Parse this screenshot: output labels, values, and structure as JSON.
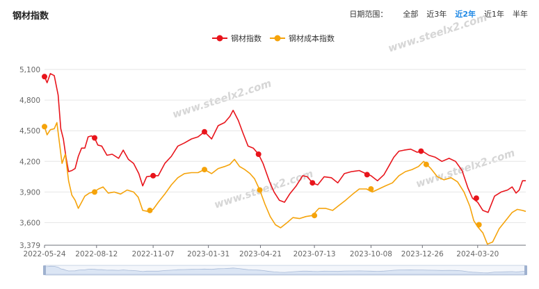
{
  "header": {
    "title": "钢材指数",
    "range_label": "日期范围：",
    "range_options": [
      "全部",
      "近3年",
      "近2年",
      "近1年",
      "半年"
    ],
    "active_range": "近2年"
  },
  "watermark": "www.steelx2.com",
  "colors": {
    "steel_index": "#e8141b",
    "cost_index": "#f5a30a",
    "grid": "#e6e6e6",
    "active": "#1e88e5"
  },
  "chart_data": {
    "type": "line",
    "title": "",
    "xlabel": "",
    "ylabel": "",
    "x_ticks": [
      "2022-05-24",
      "2022-08-12",
      "2022-11-07",
      "2023-01-31",
      "2023-04-21",
      "2023-07-13",
      "2023-10-08",
      "2023-12-26",
      "2024-03-20"
    ],
    "y_ticks": [
      "3,379",
      "3,600",
      "3,900",
      "4,200",
      "4,500",
      "4,800",
      "5,100"
    ],
    "ylim": [
      3379,
      5100
    ],
    "grid": true,
    "legend_position": "top-center",
    "series": [
      {
        "name": "钢材指数",
        "color": "#e8141b",
        "points": [
          [
            "2022-05-24",
            5030
          ],
          [
            "2022-05-28",
            4970
          ],
          [
            "2022-06-02",
            5060
          ],
          [
            "2022-06-08",
            5040
          ],
          [
            "2022-06-14",
            4850
          ],
          [
            "2022-06-18",
            4520
          ],
          [
            "2022-06-22",
            4420
          ],
          [
            "2022-06-26",
            4240
          ],
          [
            "2022-06-30",
            4100
          ],
          [
            "2022-07-05",
            4110
          ],
          [
            "2022-07-10",
            4130
          ],
          [
            "2022-07-15",
            4250
          ],
          [
            "2022-07-20",
            4330
          ],
          [
            "2022-07-25",
            4330
          ],
          [
            "2022-07-30",
            4440
          ],
          [
            "2022-08-04",
            4450
          ],
          [
            "2022-08-09",
            4430
          ],
          [
            "2022-08-14",
            4360
          ],
          [
            "2022-08-20",
            4350
          ],
          [
            "2022-08-28",
            4260
          ],
          [
            "2022-09-05",
            4270
          ],
          [
            "2022-09-15",
            4230
          ],
          [
            "2022-09-22",
            4310
          ],
          [
            "2022-09-30",
            4220
          ],
          [
            "2022-10-08",
            4180
          ],
          [
            "2022-10-16",
            4080
          ],
          [
            "2022-10-22",
            3960
          ],
          [
            "2022-10-28",
            4050
          ],
          [
            "2022-11-07",
            4060
          ],
          [
            "2022-11-15",
            4060
          ],
          [
            "2022-11-25",
            4180
          ],
          [
            "2022-12-05",
            4250
          ],
          [
            "2022-12-15",
            4350
          ],
          [
            "2022-12-25",
            4380
          ],
          [
            "2023-01-05",
            4420
          ],
          [
            "2023-01-15",
            4440
          ],
          [
            "2023-01-25",
            4490
          ],
          [
            "2023-02-05",
            4420
          ],
          [
            "2023-02-15",
            4550
          ],
          [
            "2023-02-25",
            4580
          ],
          [
            "2023-03-05",
            4640
          ],
          [
            "2023-03-10",
            4700
          ],
          [
            "2023-03-18",
            4600
          ],
          [
            "2023-03-25",
            4480
          ],
          [
            "2023-04-02",
            4350
          ],
          [
            "2023-04-10",
            4330
          ],
          [
            "2023-04-18",
            4270
          ],
          [
            "2023-04-25",
            4180
          ],
          [
            "2023-05-05",
            4000
          ],
          [
            "2023-05-12",
            3900
          ],
          [
            "2023-05-20",
            3820
          ],
          [
            "2023-05-28",
            3800
          ],
          [
            "2023-06-05",
            3880
          ],
          [
            "2023-06-15",
            3960
          ],
          [
            "2023-06-25",
            4060
          ],
          [
            "2023-07-02",
            4050
          ],
          [
            "2023-07-10",
            3990
          ],
          [
            "2023-07-18",
            3970
          ],
          [
            "2023-07-28",
            4050
          ],
          [
            "2023-08-08",
            4040
          ],
          [
            "2023-08-18",
            3990
          ],
          [
            "2023-08-28",
            4080
          ],
          [
            "2023-09-08",
            4100
          ],
          [
            "2023-09-20",
            4110
          ],
          [
            "2023-09-30",
            4080
          ],
          [
            "2023-10-08",
            4060
          ],
          [
            "2023-10-18",
            4010
          ],
          [
            "2023-10-28",
            4070
          ],
          [
            "2023-11-05",
            4160
          ],
          [
            "2023-11-12",
            4240
          ],
          [
            "2023-11-20",
            4300
          ],
          [
            "2023-11-28",
            4310
          ],
          [
            "2023-12-08",
            4320
          ],
          [
            "2023-12-18",
            4290
          ],
          [
            "2023-12-26",
            4300
          ],
          [
            "2024-01-05",
            4260
          ],
          [
            "2024-01-15",
            4240
          ],
          [
            "2024-01-25",
            4200
          ],
          [
            "2024-02-05",
            4230
          ],
          [
            "2024-02-15",
            4200
          ],
          [
            "2024-02-25",
            4110
          ],
          [
            "2024-03-05",
            3940
          ],
          [
            "2024-03-12",
            3840
          ],
          [
            "2024-03-20",
            3800
          ],
          [
            "2024-03-28",
            3720
          ],
          [
            "2024-04-05",
            3700
          ],
          [
            "2024-04-15",
            3860
          ],
          [
            "2024-04-25",
            3900
          ],
          [
            "2024-05-05",
            3920
          ],
          [
            "2024-05-12",
            3950
          ],
          [
            "2024-05-18",
            3890
          ],
          [
            "2024-05-23",
            3920
          ],
          [
            "2024-05-28",
            4010
          ],
          [
            "2024-06-02",
            4010
          ]
        ],
        "markers": [
          [
            "2022-05-24",
            5030
          ],
          [
            "2022-08-09",
            4430
          ],
          [
            "2022-11-07",
            4060
          ],
          [
            "2023-01-25",
            4490
          ],
          [
            "2023-04-18",
            4270
          ],
          [
            "2023-07-10",
            3990
          ],
          [
            "2023-10-02",
            4070
          ],
          [
            "2023-12-24",
            4300
          ],
          [
            "2024-03-18",
            3840
          ]
        ]
      },
      {
        "name": "钢材成本指数",
        "color": "#f5a30a",
        "points": [
          [
            "2022-05-24",
            4540
          ],
          [
            "2022-05-28",
            4460
          ],
          [
            "2022-06-02",
            4510
          ],
          [
            "2022-06-08",
            4520
          ],
          [
            "2022-06-12",
            4580
          ],
          [
            "2022-06-16",
            4380
          ],
          [
            "2022-06-20",
            4180
          ],
          [
            "2022-06-25",
            4270
          ],
          [
            "2022-06-30",
            4010
          ],
          [
            "2022-07-05",
            3870
          ],
          [
            "2022-07-10",
            3820
          ],
          [
            "2022-07-15",
            3740
          ],
          [
            "2022-07-20",
            3800
          ],
          [
            "2022-07-25",
            3860
          ],
          [
            "2022-08-01",
            3890
          ],
          [
            "2022-08-08",
            3900
          ],
          [
            "2022-08-15",
            3930
          ],
          [
            "2022-08-22",
            3950
          ],
          [
            "2022-08-30",
            3890
          ],
          [
            "2022-09-08",
            3900
          ],
          [
            "2022-09-18",
            3880
          ],
          [
            "2022-09-28",
            3920
          ],
          [
            "2022-10-08",
            3900
          ],
          [
            "2022-10-15",
            3850
          ],
          [
            "2022-10-22",
            3720
          ],
          [
            "2022-10-30",
            3710
          ],
          [
            "2022-11-07",
            3730
          ],
          [
            "2022-11-15",
            3800
          ],
          [
            "2022-11-25",
            3880
          ],
          [
            "2022-12-05",
            3970
          ],
          [
            "2022-12-15",
            4040
          ],
          [
            "2022-12-25",
            4080
          ],
          [
            "2023-01-05",
            4090
          ],
          [
            "2023-01-15",
            4090
          ],
          [
            "2023-01-25",
            4120
          ],
          [
            "2023-02-05",
            4080
          ],
          [
            "2023-02-15",
            4130
          ],
          [
            "2023-02-25",
            4150
          ],
          [
            "2023-03-05",
            4170
          ],
          [
            "2023-03-12",
            4220
          ],
          [
            "2023-03-20",
            4150
          ],
          [
            "2023-03-28",
            4120
          ],
          [
            "2023-04-05",
            4080
          ],
          [
            "2023-04-12",
            4030
          ],
          [
            "2023-04-20",
            3920
          ],
          [
            "2023-04-28",
            3780
          ],
          [
            "2023-05-06",
            3660
          ],
          [
            "2023-05-14",
            3580
          ],
          [
            "2023-05-22",
            3550
          ],
          [
            "2023-06-01",
            3600
          ],
          [
            "2023-06-10",
            3650
          ],
          [
            "2023-06-20",
            3640
          ],
          [
            "2023-06-30",
            3660
          ],
          [
            "2023-07-10",
            3670
          ],
          [
            "2023-07-20",
            3740
          ],
          [
            "2023-07-30",
            3740
          ],
          [
            "2023-08-10",
            3720
          ],
          [
            "2023-08-20",
            3770
          ],
          [
            "2023-08-30",
            3820
          ],
          [
            "2023-09-10",
            3880
          ],
          [
            "2023-09-20",
            3930
          ],
          [
            "2023-10-01",
            3930
          ],
          [
            "2023-10-10",
            3900
          ],
          [
            "2023-10-20",
            3930
          ],
          [
            "2023-10-30",
            3960
          ],
          [
            "2023-11-10",
            3990
          ],
          [
            "2023-11-20",
            4060
          ],
          [
            "2023-11-30",
            4100
          ],
          [
            "2023-12-10",
            4120
          ],
          [
            "2023-12-20",
            4150
          ],
          [
            "2023-12-28",
            4200
          ],
          [
            "2024-01-08",
            4130
          ],
          [
            "2024-01-18",
            4050
          ],
          [
            "2024-01-28",
            4020
          ],
          [
            "2024-02-08",
            4040
          ],
          [
            "2024-02-18",
            4000
          ],
          [
            "2024-02-28",
            3900
          ],
          [
            "2024-03-08",
            3760
          ],
          [
            "2024-03-14",
            3620
          ],
          [
            "2024-03-20",
            3560
          ],
          [
            "2024-03-28",
            3500
          ],
          [
            "2024-04-04",
            3390
          ],
          [
            "2024-04-12",
            3410
          ],
          [
            "2024-04-22",
            3540
          ],
          [
            "2024-05-02",
            3620
          ],
          [
            "2024-05-12",
            3700
          ],
          [
            "2024-05-20",
            3730
          ],
          [
            "2024-05-28",
            3720
          ],
          [
            "2024-06-02",
            3710
          ]
        ],
        "markers": [
          [
            "2022-05-24",
            4540
          ],
          [
            "2022-08-09",
            3900
          ],
          [
            "2022-11-02",
            3720
          ],
          [
            "2023-01-25",
            4120
          ],
          [
            "2023-04-20",
            3920
          ],
          [
            "2023-07-13",
            3670
          ],
          [
            "2023-10-08",
            3930
          ],
          [
            "2024-01-01",
            4170
          ],
          [
            "2024-03-22",
            3580
          ]
        ]
      }
    ]
  }
}
